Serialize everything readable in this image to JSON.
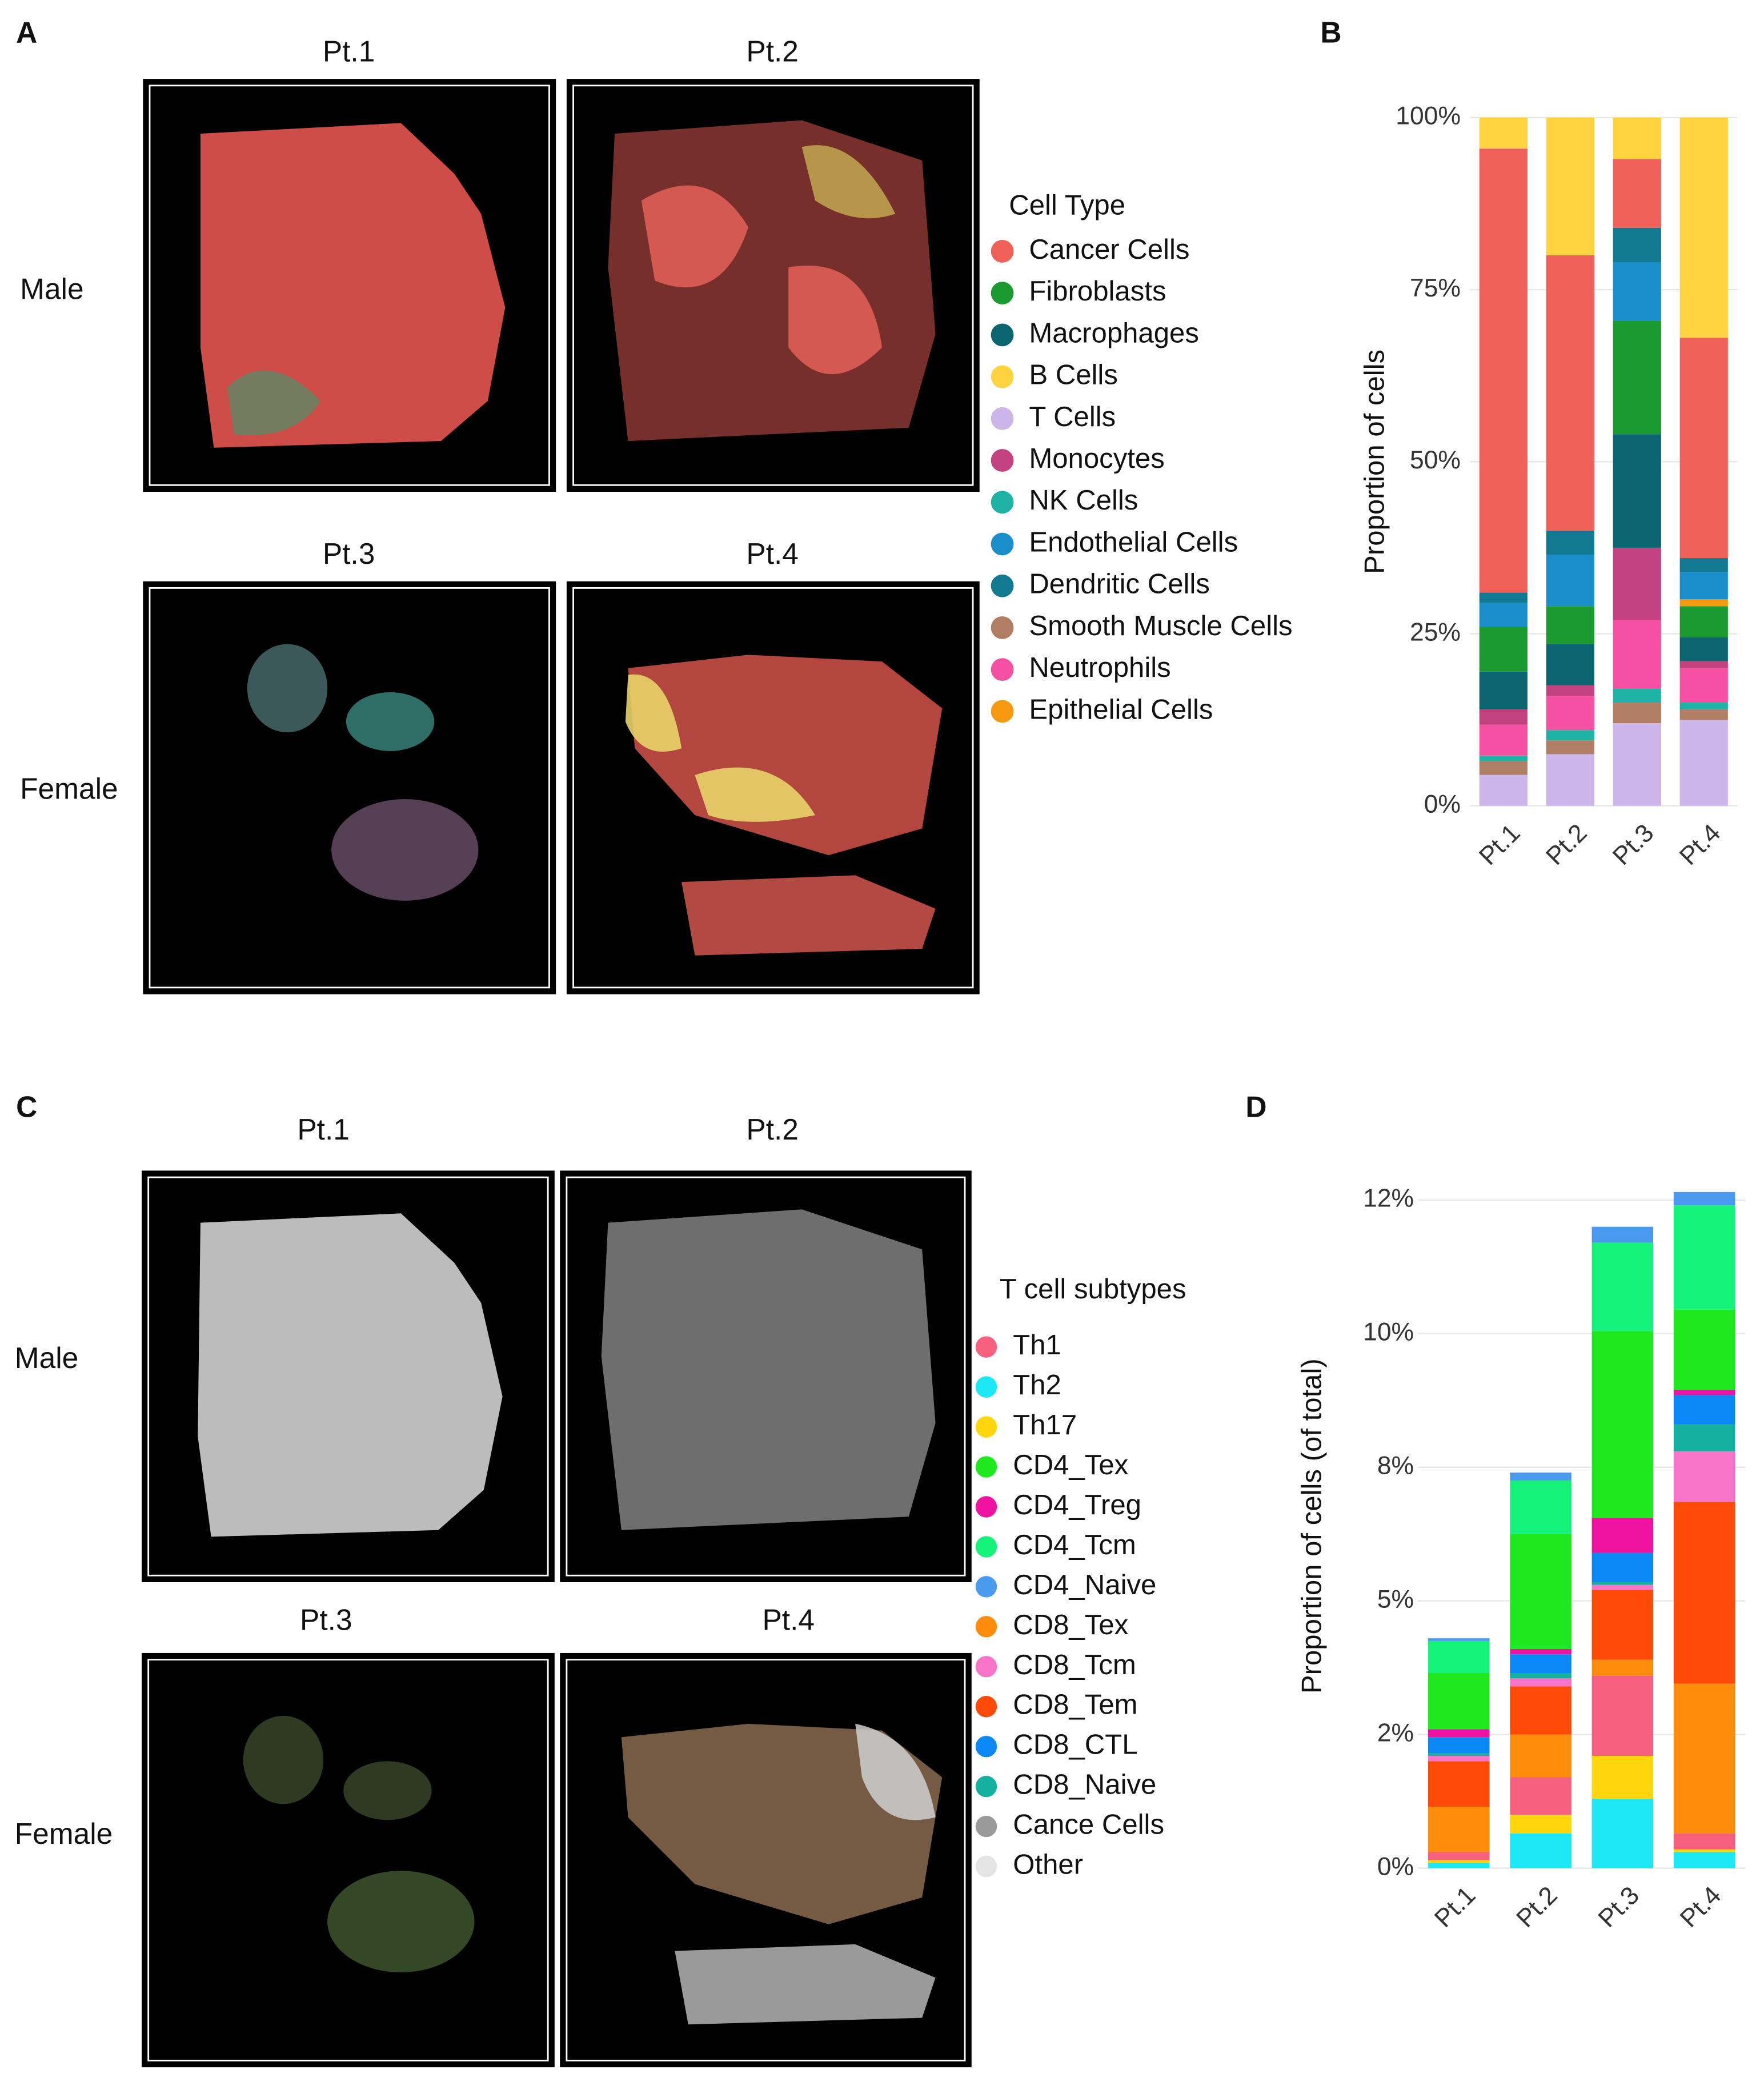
{
  "panel_labels": [
    "A",
    "B",
    "C",
    "D"
  ],
  "panel_a": {
    "titles": [
      "Pt.1",
      "Pt.2",
      "Pt.3",
      "Pt.4"
    ],
    "rows": [
      "Male",
      "Female"
    ],
    "legend_title": "Cell Type"
  },
  "panel_c": {
    "titles": [
      "Pt.1",
      "Pt.2",
      "Pt.3",
      "Pt.4"
    ],
    "rows": [
      "Male",
      "Female"
    ],
    "legend_title": "T cell subtypes",
    "legend_extra": [
      {
        "name": "Cance Cells",
        "color": "#9a9a9a"
      },
      {
        "name": "Other",
        "color": "#e4e4e4"
      }
    ]
  },
  "chart_data": [
    {
      "type": "bar",
      "stacked": true,
      "ylabel": "Proportion of cells",
      "categories": [
        "Pt.1",
        "Pt.2",
        "Pt.3",
        "Pt.4"
      ],
      "ylim": [
        0,
        100
      ],
      "grid": true,
      "yticks": [
        {
          "value": 0,
          "label": "0%"
        },
        {
          "value": 25,
          "label": "25%"
        },
        {
          "value": 50,
          "label": "50%"
        },
        {
          "value": 75,
          "label": "75%"
        },
        {
          "value": 100,
          "label": "100%"
        }
      ],
      "series": [
        {
          "name": "T Cells",
          "color": "#cbb5e9",
          "values": [
            4.5,
            7.5,
            12,
            12.5
          ]
        },
        {
          "name": "Smooth Muscle Cells",
          "color": "#b07e65",
          "values": [
            2,
            2,
            3,
            1.5
          ]
        },
        {
          "name": "NK Cells",
          "color": "#1eb3a4",
          "values": [
            0.8,
            1.5,
            2,
            1
          ]
        },
        {
          "name": "Neutrophils",
          "color": "#f550a2",
          "values": [
            4.5,
            5,
            10,
            5
          ]
        },
        {
          "name": "Monocytes",
          "color": "#c2437f",
          "values": [
            2.2,
            1.5,
            10.5,
            1
          ]
        },
        {
          "name": "Macrophages",
          "color": "#0b6570",
          "values": [
            5.5,
            6,
            16.5,
            3.5
          ]
        },
        {
          "name": "Fibroblasts",
          "color": "#1b9a2f",
          "values": [
            6.5,
            5.5,
            16.5,
            4.5
          ]
        },
        {
          "name": "Epithelial Cells",
          "color": "#f6990f",
          "values": [
            0,
            0,
            0,
            1
          ]
        },
        {
          "name": "Endothelial Cells",
          "color": "#1a8ec8",
          "values": [
            3.5,
            7.5,
            8.5,
            4
          ]
        },
        {
          "name": "Dendritic Cells",
          "color": "#117991",
          "values": [
            1.5,
            3.5,
            5,
            2
          ]
        },
        {
          "name": "Cancer Cells",
          "color": "#ef6158",
          "values": [
            64.5,
            40,
            10,
            32
          ]
        },
        {
          "name": "B Cells",
          "color": "#ffd23f",
          "values": [
            4.5,
            20,
            6,
            32
          ]
        }
      ]
    },
    {
      "type": "bar",
      "stacked": true,
      "ylabel": "Proportion of cells (of total)",
      "categories": [
        "Pt.1",
        "Pt.2",
        "Pt.3",
        "Pt.4"
      ],
      "ylim": [
        0,
        12.8
      ],
      "grid": true,
      "yticks": [
        {
          "value": 0,
          "label": "0%"
        },
        {
          "value": 2.5,
          "label": "2%"
        },
        {
          "value": 5,
          "label": "5%"
        },
        {
          "value": 7.5,
          "label": "8%"
        },
        {
          "value": 10,
          "label": "10%"
        },
        {
          "value": 12.5,
          "label": "12%"
        }
      ],
      "series": [
        {
          "name": "Th2",
          "color": "#1de8f5",
          "values": [
            0.1,
            0.65,
            1.3,
            0.3
          ]
        },
        {
          "name": "Th17",
          "color": "#ffd60b",
          "values": [
            0.05,
            0.35,
            0.8,
            0.05
          ]
        },
        {
          "name": "Th1",
          "color": "#f7607f",
          "values": [
            0.15,
            0.7,
            1.5,
            0.3
          ]
        },
        {
          "name": "CD8_Tex",
          "color": "#ff8c0b",
          "values": [
            0.85,
            0.8,
            0.3,
            2.8
          ]
        },
        {
          "name": "CD8_Tem",
          "color": "#ff4a08",
          "values": [
            0.85,
            0.9,
            1.3,
            3.4
          ]
        },
        {
          "name": "CD8_Tcm",
          "color": "#f774c9",
          "values": [
            0.1,
            0.15,
            0.1,
            0.95
          ]
        },
        {
          "name": "CD8_Naive",
          "color": "#14b0a0",
          "values": [
            0.05,
            0.1,
            0.05,
            0.5
          ]
        },
        {
          "name": "CD8_CTL",
          "color": "#0a88f5",
          "values": [
            0.3,
            0.35,
            0.55,
            0.55
          ]
        },
        {
          "name": "CD4_Treg",
          "color": "#f012a0",
          "values": [
            0.15,
            0.1,
            0.65,
            0.1
          ]
        },
        {
          "name": "CD4_Tex",
          "color": "#1ee81e",
          "values": [
            1.05,
            2.15,
            3.5,
            1.5
          ]
        },
        {
          "name": "CD4_Tcm",
          "color": "#14f27a",
          "values": [
            0.6,
            1,
            1.65,
            1.95
          ]
        },
        {
          "name": "CD4_Naive",
          "color": "#4a9af0",
          "values": [
            0.05,
            0.15,
            0.3,
            0.25
          ]
        }
      ]
    }
  ]
}
